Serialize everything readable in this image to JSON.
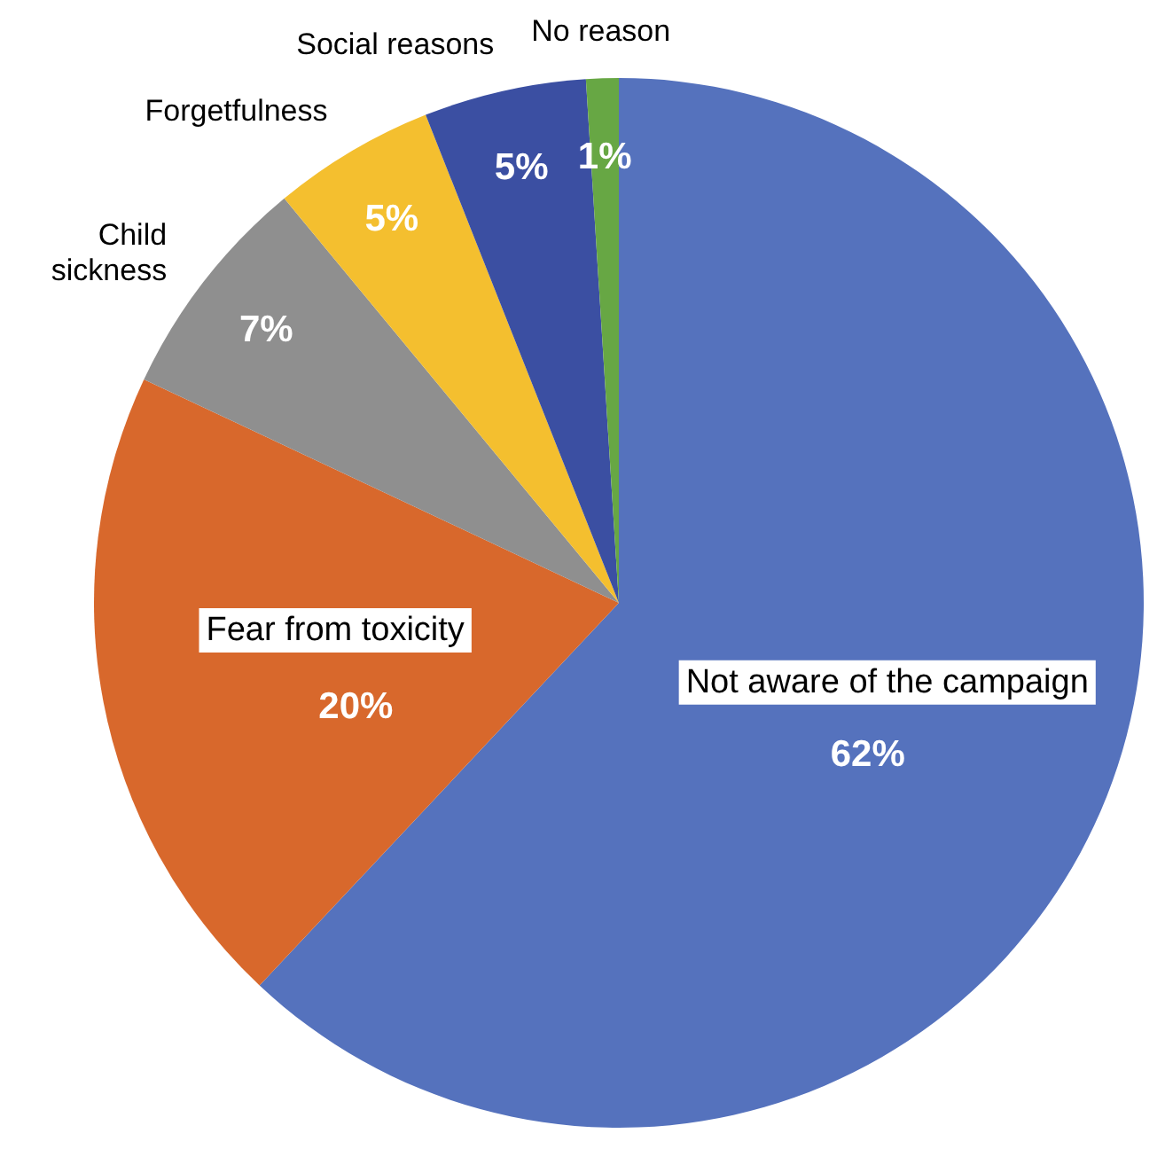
{
  "chart_data": {
    "type": "pie",
    "categories": [
      "Not aware of the campaign",
      "Fear from toxicity",
      "Child sickness",
      "Forgetfulness",
      "Social reasons",
      "No reason"
    ],
    "values": [
      62,
      20,
      7,
      5,
      5,
      1
    ],
    "value_labels": [
      "62%",
      "20%",
      "7%",
      "5%",
      "5%",
      "1%"
    ],
    "colors": [
      "#5572bd",
      "#d8682c",
      "#8f8f8f",
      "#f4bf2f",
      "#3b4fa2",
      "#67a744"
    ]
  }
}
